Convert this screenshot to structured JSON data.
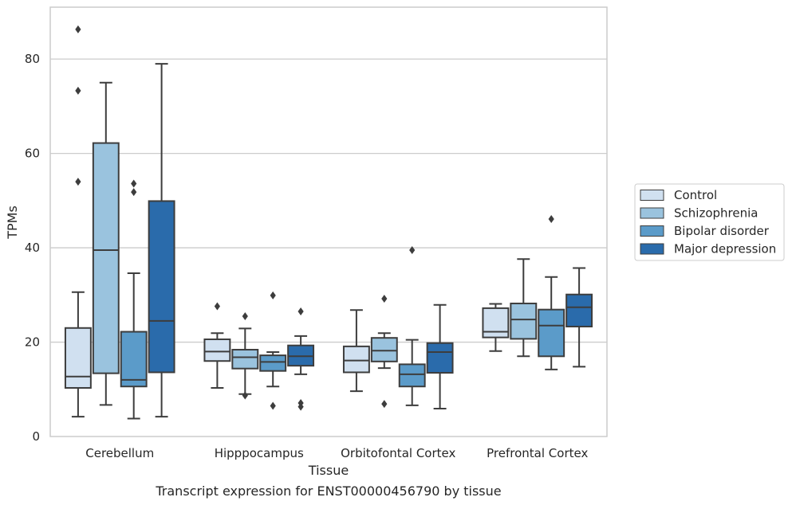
{
  "chart_data": {
    "type": "box",
    "xlabel": "Tissue",
    "ylabel": "TPMs",
    "caption": "Transcript expression for ENST00000456790 by tissue",
    "ylim": [
      0,
      91
    ],
    "yticks": [
      0,
      20,
      40,
      60,
      80
    ],
    "grid": "horizontal",
    "legend_position": "right",
    "categories": [
      "Cerebellum",
      "Hipppocampus",
      "Orbitofontal Cortex",
      "Prefrontal Cortex"
    ],
    "series": [
      {
        "name": "Control",
        "color": "#d0e0f0",
        "boxes": [
          {
            "whislo": 4.2,
            "q1": 10.3,
            "med": 12.7,
            "q3": 23.0,
            "whishi": 30.6,
            "fliers": [
              86.3,
              73.3,
              54.0
            ]
          },
          {
            "whislo": 10.3,
            "q1": 16.0,
            "med": 18.0,
            "q3": 20.6,
            "whishi": 21.9,
            "fliers": [
              27.6
            ]
          },
          {
            "whislo": 9.6,
            "q1": 13.6,
            "med": 16.1,
            "q3": 19.1,
            "whishi": 26.8,
            "fliers": []
          },
          {
            "whislo": 18.1,
            "q1": 21.0,
            "med": 22.2,
            "q3": 27.2,
            "whishi": 28.1,
            "fliers": []
          }
        ]
      },
      {
        "name": "Schizophrenia",
        "color": "#9ac3de",
        "boxes": [
          {
            "whislo": 6.7,
            "q1": 13.4,
            "med": 39.5,
            "q3": 62.2,
            "whishi": 75.0,
            "fliers": []
          },
          {
            "whislo": 9.0,
            "q1": 14.4,
            "med": 16.8,
            "q3": 18.4,
            "whishi": 22.9,
            "fliers": [
              25.5,
              8.7
            ]
          },
          {
            "whislo": 14.5,
            "q1": 15.9,
            "med": 18.2,
            "q3": 20.9,
            "whishi": 21.9,
            "fliers": [
              29.2,
              6.9
            ]
          },
          {
            "whislo": 17.0,
            "q1": 20.7,
            "med": 24.8,
            "q3": 28.2,
            "whishi": 37.6,
            "fliers": []
          }
        ]
      },
      {
        "name": "Bipolar disorder",
        "color": "#5b9bc9",
        "boxes": [
          {
            "whislo": 3.8,
            "q1": 10.6,
            "med": 12.0,
            "q3": 22.2,
            "whishi": 34.6,
            "fliers": [
              53.6,
              51.8
            ]
          },
          {
            "whislo": 10.6,
            "q1": 13.9,
            "med": 15.8,
            "q3": 17.2,
            "whishi": 17.9,
            "fliers": [
              29.9,
              6.5
            ]
          },
          {
            "whislo": 6.6,
            "q1": 10.6,
            "med": 13.2,
            "q3": 15.3,
            "whishi": 20.5,
            "fliers": [
              39.5
            ]
          },
          {
            "whislo": 14.2,
            "q1": 17.0,
            "med": 23.5,
            "q3": 26.9,
            "whishi": 33.8,
            "fliers": [
              46.1
            ]
          }
        ]
      },
      {
        "name": "Major depression",
        "color": "#2a6bab",
        "boxes": [
          {
            "whislo": 4.2,
            "q1": 13.6,
            "med": 24.5,
            "q3": 49.9,
            "whishi": 79.0,
            "fliers": []
          },
          {
            "whislo": 13.2,
            "q1": 15.0,
            "med": 17.0,
            "q3": 19.3,
            "whishi": 21.3,
            "fliers": [
              26.5,
              7.1,
              6.3
            ]
          },
          {
            "whislo": 5.9,
            "q1": 13.5,
            "med": 17.9,
            "q3": 19.8,
            "whishi": 27.9,
            "fliers": []
          },
          {
            "whislo": 14.8,
            "q1": 23.3,
            "med": 27.4,
            "q3": 30.1,
            "whishi": 35.7,
            "fliers": []
          }
        ]
      }
    ]
  }
}
